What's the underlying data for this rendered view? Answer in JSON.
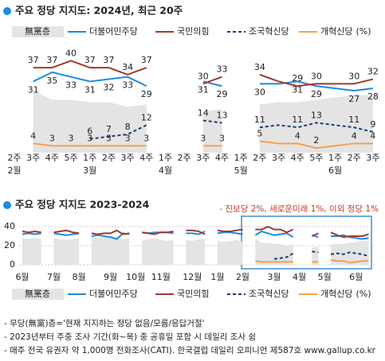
{
  "chart_data": [
    {
      "type": "line",
      "title": "주요 정당 지지도: 2024년, 최근 20주",
      "categories": [
        "2주",
        "3주",
        "4주",
        "5주",
        "1주",
        "2주",
        "3주",
        "4주",
        "1주",
        "2주",
        "3주",
        "4주",
        "1주",
        "2주",
        "3주",
        "4주",
        "5주",
        "1주",
        "2주",
        "3주"
      ],
      "months": [
        "2월",
        null,
        null,
        null,
        "3월",
        null,
        null,
        null,
        "4월",
        null,
        null,
        null,
        "5월",
        null,
        null,
        null,
        null,
        "6월",
        null,
        null
      ],
      "ylim": [
        0,
        45
      ],
      "unit": "(%)",
      "note": "- 진보당 2%, 새로운미래 1%, 이외 정당 1%",
      "series": [
        {
          "name": "無黨층",
          "color": "#e4e4e4",
          "fill": true,
          "values": [
            null,
            27,
            23,
            23,
            22,
            22,
            20,
            21,
            null,
            null,
            18,
            19,
            null,
            21,
            22,
            22,
            23,
            24,
            25,
            25
          ]
        },
        {
          "name": "더불어민주당",
          "color": "#1a8ae5",
          "label_position": "below",
          "values": [
            null,
            31,
            35,
            33,
            31,
            32,
            33,
            29,
            null,
            null,
            31,
            29,
            null,
            30,
            30,
            31,
            29,
            28,
            27,
            28
          ],
          "value_labels": [
            null,
            "31",
            "35",
            "33",
            "31",
            "32",
            "33",
            "29",
            null,
            null,
            "31",
            "29",
            null,
            "30",
            null,
            "31",
            "29",
            null,
            "27",
            "28"
          ]
        },
        {
          "name": "국민의힘",
          "color": "#9e3a2e",
          "label_position": "above",
          "values": [
            null,
            37,
            37,
            40,
            37,
            37,
            34,
            37,
            null,
            null,
            30,
            33,
            null,
            34,
            31,
            29,
            30,
            30,
            30,
            32
          ],
          "value_labels": [
            null,
            "37",
            "37",
            "40",
            "37",
            "37",
            "34",
            "37",
            null,
            null,
            "30",
            "33",
            null,
            "34",
            null,
            "29",
            "30",
            null,
            "30",
            "32"
          ]
        },
        {
          "name": "조국혁신당",
          "color": "#1f3b73",
          "dash": true,
          "label_position": "above",
          "values": [
            null,
            null,
            null,
            null,
            6,
            7,
            8,
            12,
            null,
            null,
            14,
            13,
            null,
            11,
            12,
            11,
            13,
            12,
            11,
            9
          ],
          "value_labels": [
            null,
            null,
            null,
            null,
            "6",
            "7",
            "8",
            "12",
            null,
            null,
            "14",
            "13",
            null,
            "11",
            null,
            "11",
            "13",
            null,
            "11",
            "9"
          ]
        },
        {
          "name": "개혁신당",
          "color": "#f5a04e",
          "label_position": "above",
          "values": [
            null,
            4,
            3,
            3,
            3,
            3,
            3,
            3,
            null,
            null,
            3,
            3,
            null,
            5,
            4,
            4,
            2,
            3,
            4,
            4
          ],
          "value_labels": [
            null,
            "4",
            "3",
            "3",
            "3",
            "3",
            "3",
            "3",
            null,
            null,
            "3",
            "3",
            null,
            "5",
            null,
            "4",
            "2",
            null,
            "4",
            "4"
          ]
        }
      ]
    },
    {
      "type": "line",
      "title": "주요 정당 지지도 2023-2024",
      "categories": [
        "6월",
        null,
        null,
        null,
        null,
        "7월",
        null,
        null,
        null,
        "8월",
        null,
        null,
        null,
        null,
        "9월",
        null,
        null,
        null,
        "10월",
        null,
        null,
        null,
        "11월",
        null,
        null,
        null,
        null,
        "12월",
        null,
        null,
        null,
        "1월",
        null,
        null,
        null,
        "2월",
        null,
        null,
        null,
        null,
        "3월",
        null,
        null,
        null,
        "4월",
        null,
        null,
        null,
        "5월",
        null,
        null,
        null,
        null,
        "6월",
        null,
        null
      ],
      "ylim": [
        0,
        40
      ],
      "yticks": [
        0,
        20,
        40
      ],
      "grid": true,
      "unit": "(%)",
      "series": [
        {
          "name": "無黨층",
          "color": "#e4e4e4",
          "fill": true,
          "values": [
            28,
            27,
            28,
            27,
            null,
            28,
            27,
            26,
            27,
            28,
            null,
            29,
            28,
            29,
            30,
            29,
            27,
            28,
            null,
            25,
            27,
            28,
            26,
            25,
            26,
            null,
            26,
            25,
            27,
            27,
            null,
            25,
            24,
            25,
            26,
            24,
            null,
            27,
            23,
            23,
            22,
            22,
            20,
            21,
            null,
            null,
            18,
            19,
            null,
            21,
            22,
            22,
            23,
            24,
            25,
            25
          ]
        },
        {
          "name": "더불어민주당",
          "color": "#1a8ae5",
          "values": [
            32,
            33,
            32,
            33,
            null,
            33,
            32,
            31,
            32,
            33,
            null,
            30,
            31,
            30,
            29,
            27,
            33,
            32,
            null,
            34,
            33,
            34,
            34,
            34,
            33,
            null,
            33,
            33,
            32,
            35,
            null,
            33,
            34,
            34,
            33,
            32,
            null,
            31,
            35,
            33,
            31,
            32,
            33,
            29,
            null,
            null,
            31,
            29,
            null,
            30,
            30,
            31,
            29,
            28,
            27,
            28
          ]
        },
        {
          "name": "국민의힘",
          "color": "#9e3a2e",
          "values": [
            35,
            34,
            35,
            34,
            null,
            34,
            35,
            36,
            34,
            33,
            null,
            33,
            32,
            33,
            33,
            36,
            32,
            33,
            null,
            34,
            33,
            32,
            34,
            34,
            35,
            null,
            36,
            36,
            35,
            32,
            null,
            36,
            35,
            35,
            36,
            37,
            null,
            37,
            37,
            40,
            37,
            37,
            34,
            37,
            null,
            null,
            30,
            33,
            null,
            34,
            31,
            29,
            30,
            30,
            30,
            32
          ]
        },
        {
          "name": "조국혁신당",
          "color": "#1f3b73",
          "dash": true,
          "values": [
            null,
            null,
            null,
            null,
            null,
            null,
            null,
            null,
            null,
            null,
            null,
            null,
            null,
            null,
            null,
            null,
            null,
            null,
            null,
            null,
            null,
            null,
            null,
            null,
            null,
            null,
            null,
            null,
            null,
            null,
            null,
            null,
            null,
            null,
            null,
            null,
            null,
            null,
            null,
            null,
            6,
            7,
            8,
            12,
            null,
            null,
            14,
            13,
            null,
            11,
            12,
            11,
            13,
            12,
            11,
            9
          ]
        },
        {
          "name": "개혁신당",
          "color": "#f5a04e",
          "values": [
            null,
            null,
            null,
            null,
            null,
            null,
            null,
            null,
            null,
            null,
            null,
            null,
            null,
            null,
            null,
            null,
            null,
            null,
            null,
            null,
            null,
            null,
            null,
            null,
            null,
            null,
            null,
            null,
            null,
            null,
            null,
            null,
            null,
            null,
            null,
            null,
            null,
            4,
            3,
            3,
            3,
            3,
            3,
            3,
            null,
            null,
            3,
            3,
            null,
            5,
            4,
            4,
            2,
            3,
            4,
            4
          ]
        }
      ]
    }
  ],
  "notes": [
    "- 무당(無黨)층='현재 지지하는 정당 없음/모름/응답거절'",
    "- 2023년부터 주중 조사 기간(화~목) 중 공휴일 포함 시 데일리 조사 쉼",
    "- 매주 전국 유권자 약 1,000명 전화조사(CATI). 한국갤럽 데일리 오피니언 제587호 www.gallup.co.kr"
  ]
}
